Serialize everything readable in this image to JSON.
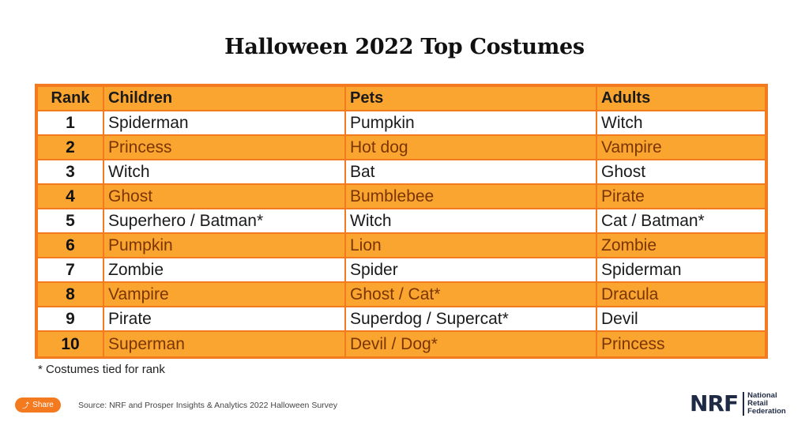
{
  "title": "Halloween 2022 Top Costumes",
  "table": {
    "headers": [
      "Rank",
      "Children",
      "Pets",
      "Adults"
    ],
    "rows": [
      {
        "rank": "1",
        "children": "Spiderman",
        "pets": "Pumpkin",
        "adults": "Witch"
      },
      {
        "rank": "2",
        "children": "Princess",
        "pets": "Hot dog",
        "adults": "Vampire"
      },
      {
        "rank": "3",
        "children": "Witch",
        "pets": "Bat",
        "adults": "Ghost"
      },
      {
        "rank": "4",
        "children": "Ghost",
        "pets": "Bumblebee",
        "adults": "Pirate"
      },
      {
        "rank": "5",
        "children": "Superhero / Batman*",
        "pets": "Witch",
        "adults": "Cat / Batman*"
      },
      {
        "rank": "6",
        "children": "Pumpkin",
        "pets": "Lion",
        "adults": "Zombie"
      },
      {
        "rank": "7",
        "children": "Zombie",
        "pets": "Spider",
        "adults": "Spiderman"
      },
      {
        "rank": "8",
        "children": "Vampire",
        "pets": "Ghost / Cat*",
        "adults": "Dracula"
      },
      {
        "rank": "9",
        "children": "Pirate",
        "pets": "Superdog / Supercat*",
        "adults": "Devil"
      },
      {
        "rank": "10",
        "children": "Superman",
        "pets": "Devil / Dog*",
        "adults": "Princess"
      }
    ]
  },
  "footnote": "* Costumes tied for rank",
  "share_label": "Share",
  "share_icon": "share-icon",
  "source": "Source: NRF and Prosper Insights & Analytics 2022 Halloween Survey",
  "logo": {
    "mark": "NRF",
    "line1": "National",
    "line2": "Retail",
    "line3": "Federation"
  },
  "colors": {
    "accent": "#f47a20",
    "band": "#faa530",
    "navy": "#1f2a44"
  }
}
